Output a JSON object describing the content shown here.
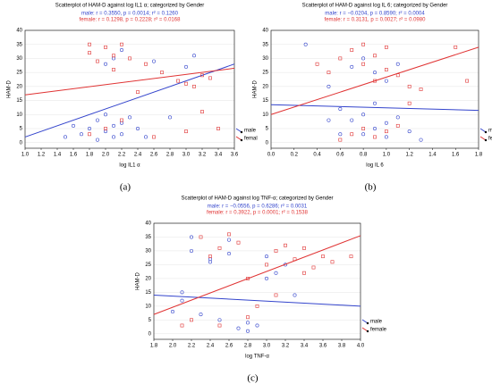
{
  "chart_data": [
    {
      "type": "scatter",
      "title": "Scatterplot of HAM-D against log IL1 α; categorized by Gender",
      "annotations": [
        "male:  r = 0.3550, p = 0.0014; r² = 0.1260",
        "female:  r = 0.1298, p = 0.2228; r² = 0.0168"
      ],
      "xlabel": "log IL1 α",
      "ylabel": "HAM-D",
      "caption": "(a)",
      "xlim": [
        1.0,
        3.6
      ],
      "xticks": [
        {
          "value": 1.0,
          "label": "1.0"
        },
        1.2,
        1.4,
        1.6,
        1.8,
        {
          "value": 2.0,
          "label": "2.0"
        },
        2.2,
        2.4,
        2.6,
        2.8,
        {
          "value": 3.0,
          "label": "3.0"
        },
        3.2,
        3.4,
        3.6
      ],
      "ylim": [
        -2,
        40
      ],
      "yticks": [
        0,
        5,
        10,
        15,
        20,
        25,
        30,
        35,
        40
      ],
      "series": [
        {
          "name": "male",
          "color": "#3344cc",
          "marker": "circle",
          "x": [
            1.5,
            1.6,
            1.7,
            1.8,
            1.9,
            1.9,
            2.0,
            2.0,
            2.1,
            2.1,
            2.2,
            2.2,
            2.3,
            2.4,
            2.5,
            2.0,
            2.1,
            2.2,
            2.6,
            3.0,
            3.1,
            2.8
          ],
          "y": [
            2,
            6,
            3,
            5,
            1,
            8,
            4,
            10,
            2,
            6,
            7,
            3,
            9,
            5,
            2,
            28,
            30,
            33,
            29,
            27,
            31,
            9
          ],
          "fit_x": [
            1.0,
            3.6
          ],
          "fit_y": [
            2,
            28
          ]
        },
        {
          "name": "femal",
          "color": "#e03333",
          "marker": "square",
          "x": [
            1.8,
            1.8,
            1.9,
            2.0,
            2.1,
            2.1,
            2.2,
            2.3,
            2.5,
            2.7,
            2.9,
            3.0,
            3.1,
            3.2,
            3.3,
            1.8,
            2.0,
            2.2,
            2.6,
            3.0,
            3.2,
            3.4,
            2.4
          ],
          "y": [
            35,
            32,
            29,
            34,
            31,
            26,
            35,
            30,
            28,
            25,
            22,
            21,
            20,
            24,
            23,
            3,
            5,
            8,
            2,
            4,
            11,
            5,
            18
          ],
          "fit_x": [
            1.0,
            3.6
          ],
          "fit_y": [
            17,
            26.5
          ]
        }
      ]
    },
    {
      "type": "scatter",
      "title": "Scatterplot of HAM-D against log IL 6; categorized by Gender",
      "annotations": [
        "male:  r = −0.0204, p = 0.8590; r² = 0.0004",
        "female:  r = 0.3131, p = 0.0027; r² = 0.0980"
      ],
      "xlabel": "log IL 6",
      "ylabel": "HAM-D",
      "caption": "(b)",
      "xlim": [
        0.0,
        1.8
      ],
      "xticks": [
        {
          "value": 0.0,
          "label": "0.0"
        },
        0.2,
        0.4,
        0.6,
        0.8,
        {
          "value": 1.0,
          "label": "1.0"
        },
        1.2,
        1.4,
        1.6,
        1.8
      ],
      "ylim": [
        -2,
        40
      ],
      "yticks": [
        0,
        5,
        10,
        15,
        20,
        25,
        30,
        35,
        40
      ],
      "series": [
        {
          "name": "male",
          "color": "#3344cc",
          "marker": "circle",
          "x": [
            0.3,
            0.5,
            0.6,
            0.7,
            0.8,
            0.8,
            0.9,
            0.9,
            1.0,
            1.0,
            1.1,
            1.2,
            0.7,
            0.8,
            0.9,
            1.0,
            1.1,
            0.5,
            0.6,
            1.3
          ],
          "y": [
            35,
            20,
            12,
            8,
            3,
            10,
            5,
            14,
            7,
            2,
            9,
            4,
            27,
            30,
            25,
            22,
            28,
            8,
            3,
            1
          ],
          "fit_x": [
            0.0,
            1.8
          ],
          "fit_y": [
            13.5,
            11.5
          ]
        },
        {
          "name": "femal",
          "color": "#e03333",
          "marker": "square",
          "x": [
            0.5,
            0.6,
            0.7,
            0.8,
            0.8,
            0.9,
            0.9,
            1.0,
            1.0,
            1.1,
            1.2,
            1.3,
            0.7,
            0.8,
            0.9,
            1.0,
            1.1,
            1.6,
            1.7,
            0.6,
            1.2,
            0.4
          ],
          "y": [
            25,
            30,
            33,
            28,
            35,
            22,
            31,
            26,
            34,
            24,
            20,
            19,
            3,
            5,
            2,
            4,
            6,
            34,
            22,
            1,
            14,
            28
          ],
          "fit_x": [
            0.0,
            1.8
          ],
          "fit_y": [
            10,
            34
          ]
        }
      ]
    },
    {
      "type": "scatter",
      "title": "Scatterplot of HAM-D against log TNF-α; categorized by Gender",
      "annotations": [
        "male:  r = −0.0556, p = 0.6286; r² = 0.0031",
        "female:  r = 0.3922, p = 0.0001; r² = 0.1538"
      ],
      "xlabel": "log TNF-α",
      "ylabel": "HAM-D",
      "caption": "(c)",
      "xlim": [
        1.8,
        4.0
      ],
      "xticks": [
        1.8,
        {
          "value": 2.0,
          "label": "2.0"
        },
        2.2,
        2.4,
        2.6,
        2.8,
        {
          "value": 3.0,
          "label": "3.0"
        },
        3.2,
        3.4,
        3.6,
        3.8,
        {
          "value": 4.0,
          "label": "4.0"
        }
      ],
      "ylim": [
        -2,
        40
      ],
      "yticks": [
        0,
        5,
        10,
        15,
        20,
        25,
        30,
        35,
        40
      ],
      "series": [
        {
          "name": "male",
          "color": "#3344cc",
          "marker": "circle",
          "x": [
            2.0,
            2.1,
            2.2,
            2.3,
            2.4,
            2.5,
            2.6,
            2.7,
            2.8,
            2.9,
            3.0,
            3.1,
            3.2,
            2.2,
            2.4,
            2.6,
            2.8,
            3.0,
            3.3,
            2.1
          ],
          "y": [
            8,
            12,
            30,
            7,
            27,
            5,
            34,
            2,
            4,
            3,
            28,
            22,
            25,
            35,
            26,
            29,
            1,
            20,
            14,
            15
          ],
          "fit_x": [
            1.8,
            4.0
          ],
          "fit_y": [
            14,
            10
          ]
        },
        {
          "name": "female",
          "color": "#e03333",
          "marker": "square",
          "x": [
            2.1,
            2.3,
            2.4,
            2.5,
            2.6,
            2.7,
            2.8,
            2.9,
            3.0,
            3.1,
            3.2,
            3.3,
            3.4,
            3.5,
            3.6,
            2.2,
            2.5,
            2.8,
            3.1,
            3.4,
            3.7,
            3.9
          ],
          "y": [
            3,
            35,
            28,
            31,
            36,
            33,
            20,
            10,
            25,
            30,
            32,
            27,
            31,
            24,
            28,
            5,
            3,
            6,
            14,
            22,
            26,
            28
          ],
          "fit_x": [
            1.8,
            4.0
          ],
          "fit_y": [
            7,
            35.5
          ]
        }
      ]
    }
  ]
}
